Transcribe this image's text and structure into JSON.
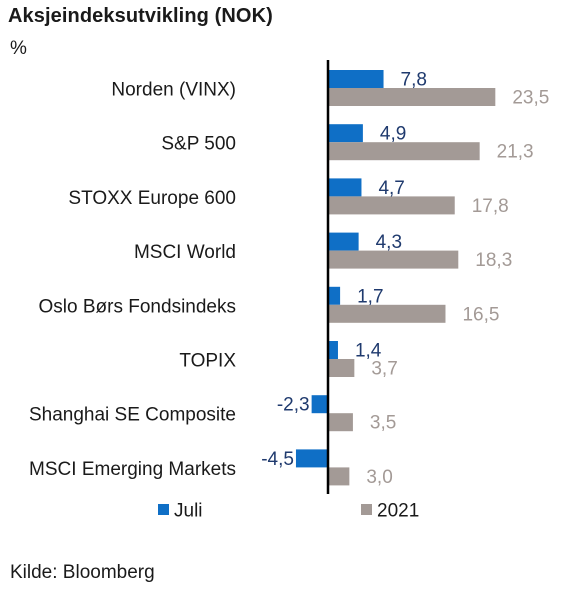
{
  "chart_data": {
    "type": "bar",
    "orientation": "horizontal",
    "title": "Aksjeindeksutvikling (NOK)",
    "unit": "%",
    "categories": [
      "Norden (VINX)",
      "S&P 500",
      "STOXX Europe 600",
      "MSCI World",
      "Oslo Børs Fondsindeks",
      "TOPIX",
      "Shanghai SE Composite",
      "MSCI Emerging Markets"
    ],
    "series": [
      {
        "name": "Juli",
        "color": "#0f6fc6",
        "label_color": "#1f3a6e",
        "values": [
          7.8,
          4.9,
          4.7,
          4.3,
          1.7,
          1.4,
          -2.3,
          -4.5
        ],
        "labels": [
          "7,8",
          "4,9",
          "4,7",
          "4,3",
          "1,7",
          "1,4",
          "-2,3",
          "-4,5"
        ]
      },
      {
        "name": "2021",
        "color": "#a39a96",
        "label_color": "#a39a96",
        "values": [
          23.5,
          21.3,
          17.8,
          18.3,
          16.5,
          3.7,
          3.5,
          3.0
        ],
        "labels": [
          "23,5",
          "21,3",
          "17,8",
          "18,3",
          "16,5",
          "3,7",
          "3,5",
          "3,0"
        ]
      }
    ],
    "legend_position": "bottom",
    "grid": false,
    "source": "Kilde: Bloomberg"
  }
}
